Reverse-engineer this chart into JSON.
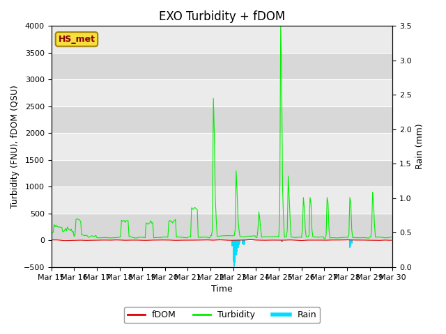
{
  "title": "EXO Turbidity + fDOM",
  "ylabel_left": "Turbidity (FNU), fDOM (QSU)",
  "ylabel_right": "Rain (mm)",
  "xlabel": "Time",
  "ylim_left": [
    -500,
    4000
  ],
  "ylim_right_bottom": 0.0,
  "ylim_right_top": 3.5,
  "xlim": [
    0,
    360
  ],
  "xtick_positions": [
    0,
    24,
    48,
    72,
    96,
    120,
    144,
    168,
    192,
    216,
    240,
    264,
    288,
    312,
    336,
    360
  ],
  "xtick_labels": [
    "Mar 15",
    "Mar 16",
    "Mar 17",
    "Mar 18",
    "Mar 19",
    "Mar 20",
    "Mar 21",
    "Mar 22",
    "Mar 23",
    "Mar 24",
    "Mar 25",
    "Mar 26",
    "Mar 27",
    "Mar 28",
    "Mar 29",
    "Mar 30"
  ],
  "annotation_text": "HS_met",
  "fdom_color": "#dd0000",
  "turbidity_color": "#00ee00",
  "rain_color": "#00ddff",
  "background_color": "#ffffff",
  "band_colors": [
    "#ebebeb",
    "#d8d8d8"
  ],
  "band_positions": [
    -500,
    0,
    500,
    1000,
    1500,
    2000,
    2500,
    3000,
    3500,
    4000
  ],
  "title_fontsize": 12,
  "axis_fontsize": 9,
  "tick_fontsize": 8
}
